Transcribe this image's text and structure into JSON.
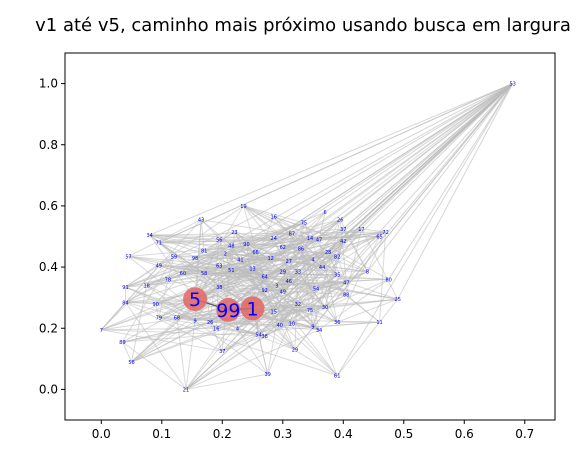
{
  "chart_data": {
    "type": "scatter",
    "title": "v1 até v5, caminho mais próximo usando busca em largura",
    "xlabel": "",
    "ylabel": "",
    "xlim": [
      -0.06,
      0.75
    ],
    "ylim": [
      -0.1,
      1.1
    ],
    "x_ticks": [
      "0.0",
      "0.1",
      "0.2",
      "0.3",
      "0.4",
      "0.5",
      "0.6",
      "0.7"
    ],
    "x_tick_values": [
      0.0,
      0.1,
      0.2,
      0.3,
      0.4,
      0.5,
      0.6,
      0.7
    ],
    "y_ticks": [
      "0.0",
      "0.2",
      "0.4",
      "0.6",
      "0.8",
      "1.0"
    ],
    "y_tick_values": [
      0.0,
      0.2,
      0.4,
      0.6,
      0.8,
      1.0
    ],
    "grid": false,
    "node_color": "#0000ff",
    "edge_color": "#bbbbbb",
    "highlight_color": "#e06666",
    "nodes": [
      {
        "label": "53",
        "x": 0.68,
        "y": 1.0
      },
      {
        "label": "19",
        "x": 0.235,
        "y": 0.6
      },
      {
        "label": "6",
        "x": 0.37,
        "y": 0.58
      },
      {
        "label": "16",
        "x": 0.285,
        "y": 0.565
      },
      {
        "label": "26",
        "x": 0.395,
        "y": 0.555
      },
      {
        "label": "43",
        "x": 0.165,
        "y": 0.555
      },
      {
        "label": "75",
        "x": 0.335,
        "y": 0.545
      },
      {
        "label": "17",
        "x": 0.43,
        "y": 0.525
      },
      {
        "label": "37",
        "x": 0.4,
        "y": 0.525
      },
      {
        "label": "72",
        "x": 0.47,
        "y": 0.515
      },
      {
        "label": "23",
        "x": 0.22,
        "y": 0.515
      },
      {
        "label": "87",
        "x": 0.315,
        "y": 0.51
      },
      {
        "label": "34",
        "x": 0.08,
        "y": 0.505
      },
      {
        "label": "65",
        "x": 0.46,
        "y": 0.5
      },
      {
        "label": "14",
        "x": 0.345,
        "y": 0.495
      },
      {
        "label": "24",
        "x": 0.285,
        "y": 0.495
      },
      {
        "label": "56",
        "x": 0.195,
        "y": 0.49
      },
      {
        "label": "47",
        "x": 0.36,
        "y": 0.49
      },
      {
        "label": "42",
        "x": 0.4,
        "y": 0.485
      },
      {
        "label": "71",
        "x": 0.095,
        "y": 0.48
      },
      {
        "label": "90",
        "x": 0.24,
        "y": 0.475
      },
      {
        "label": "48",
        "x": 0.215,
        "y": 0.47
      },
      {
        "label": "62",
        "x": 0.3,
        "y": 0.465
      },
      {
        "label": "86",
        "x": 0.33,
        "y": 0.46
      },
      {
        "label": "81",
        "x": 0.17,
        "y": 0.455
      },
      {
        "label": "66",
        "x": 0.255,
        "y": 0.45
      },
      {
        "label": "28",
        "x": 0.375,
        "y": 0.45
      },
      {
        "label": "2",
        "x": 0.205,
        "y": 0.445
      },
      {
        "label": "57",
        "x": 0.045,
        "y": 0.435
      },
      {
        "label": "59",
        "x": 0.12,
        "y": 0.435
      },
      {
        "label": "82",
        "x": 0.39,
        "y": 0.435
      },
      {
        "label": "98",
        "x": 0.155,
        "y": 0.43
      },
      {
        "label": "12",
        "x": 0.28,
        "y": 0.43
      },
      {
        "label": "41",
        "x": 0.23,
        "y": 0.425
      },
      {
        "label": "4",
        "x": 0.35,
        "y": 0.425
      },
      {
        "label": "27",
        "x": 0.31,
        "y": 0.42
      },
      {
        "label": "49",
        "x": 0.095,
        "y": 0.405
      },
      {
        "label": "63",
        "x": 0.195,
        "y": 0.405
      },
      {
        "label": "44",
        "x": 0.365,
        "y": 0.4
      },
      {
        "label": "8",
        "x": 0.44,
        "y": 0.385
      },
      {
        "label": "13",
        "x": 0.25,
        "y": 0.395
      },
      {
        "label": "51",
        "x": 0.215,
        "y": 0.39
      },
      {
        "label": "29",
        "x": 0.3,
        "y": 0.385
      },
      {
        "label": "33",
        "x": 0.325,
        "y": 0.385
      },
      {
        "label": "60",
        "x": 0.135,
        "y": 0.38
      },
      {
        "label": "58",
        "x": 0.17,
        "y": 0.38
      },
      {
        "label": "35",
        "x": 0.39,
        "y": 0.375
      },
      {
        "label": "64",
        "x": 0.27,
        "y": 0.37
      },
      {
        "label": "80",
        "x": 0.475,
        "y": 0.36
      },
      {
        "label": "78",
        "x": 0.11,
        "y": 0.36
      },
      {
        "label": "46",
        "x": 0.31,
        "y": 0.355
      },
      {
        "label": "47",
        "x": 0.405,
        "y": 0.35
      },
      {
        "label": "18",
        "x": 0.075,
        "y": 0.34
      },
      {
        "label": "91",
        "x": 0.04,
        "y": 0.335
      },
      {
        "label": "3",
        "x": 0.29,
        "y": 0.34
      },
      {
        "label": "38",
        "x": 0.195,
        "y": 0.335
      },
      {
        "label": "54",
        "x": 0.355,
        "y": 0.33
      },
      {
        "label": "92",
        "x": 0.27,
        "y": 0.325
      },
      {
        "label": "49",
        "x": 0.3,
        "y": 0.32
      },
      {
        "label": "88",
        "x": 0.405,
        "y": 0.31
      },
      {
        "label": "25",
        "x": 0.49,
        "y": 0.295
      },
      {
        "label": "84",
        "x": 0.04,
        "y": 0.285
      },
      {
        "label": "90",
        "x": 0.09,
        "y": 0.28
      },
      {
        "label": "32",
        "x": 0.325,
        "y": 0.28
      },
      {
        "label": "30",
        "x": 0.37,
        "y": 0.27
      },
      {
        "label": "75",
        "x": 0.345,
        "y": 0.26
      },
      {
        "label": "15",
        "x": 0.285,
        "y": 0.255
      },
      {
        "label": "79",
        "x": 0.095,
        "y": 0.235
      },
      {
        "label": "68",
        "x": 0.125,
        "y": 0.235
      },
      {
        "label": "36",
        "x": 0.39,
        "y": 0.22
      },
      {
        "label": "11",
        "x": 0.46,
        "y": 0.22
      },
      {
        "label": "9",
        "x": 0.155,
        "y": 0.225
      },
      {
        "label": "26",
        "x": 0.18,
        "y": 0.22
      },
      {
        "label": "10",
        "x": 0.315,
        "y": 0.215
      },
      {
        "label": "40",
        "x": 0.295,
        "y": 0.21
      },
      {
        "label": "9",
        "x": 0.35,
        "y": 0.205
      },
      {
        "label": "34",
        "x": 0.36,
        "y": 0.195
      },
      {
        "label": "16",
        "x": 0.19,
        "y": 0.2
      },
      {
        "label": "4",
        "x": 0.225,
        "y": 0.2
      },
      {
        "label": "7",
        "x": 0.0,
        "y": 0.195
      },
      {
        "label": "38",
        "x": 0.27,
        "y": 0.175
      },
      {
        "label": "54",
        "x": 0.26,
        "y": 0.18
      },
      {
        "label": "29",
        "x": 0.32,
        "y": 0.13
      },
      {
        "label": "37",
        "x": 0.2,
        "y": 0.125
      },
      {
        "label": "89",
        "x": 0.035,
        "y": 0.155
      },
      {
        "label": "56",
        "x": 0.05,
        "y": 0.09
      },
      {
        "label": "39",
        "x": 0.275,
        "y": 0.05
      },
      {
        "label": "61",
        "x": 0.39,
        "y": 0.045
      },
      {
        "label": "21",
        "x": 0.14,
        "y": 0.0
      }
    ],
    "highlighted": [
      {
        "label": "5",
        "x": 0.155,
        "y": 0.295
      },
      {
        "label": "99",
        "x": 0.21,
        "y": 0.26
      },
      {
        "label": "1",
        "x": 0.25,
        "y": 0.265
      }
    ],
    "path": [
      "5",
      "99",
      "1"
    ]
  }
}
